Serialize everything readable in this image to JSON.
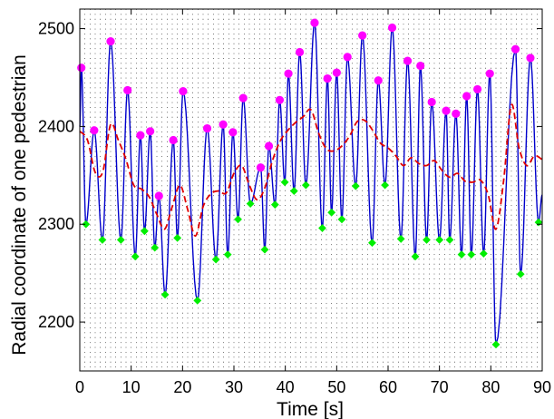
{
  "chart_data": {
    "type": "line",
    "xlabel": "Time [s]",
    "ylabel": "Radial coordinate of one pedestrian",
    "xlim": [
      0,
      90
    ],
    "ylim": [
      2150,
      2520
    ],
    "xticks": [
      0,
      10,
      20,
      30,
      40,
      50,
      60,
      70,
      80,
      90
    ],
    "yticks": [
      2200,
      2300,
      2400,
      2500
    ],
    "grid": "dotted",
    "colors": {
      "trajectory": "#0000cc",
      "smoothed": "#e00000",
      "maxima": "#ff00ff",
      "minima": "#00ee00"
    },
    "series": [
      {
        "role": "trajectory-maxima",
        "x": [
          0.3,
          2.8,
          6.0,
          9.3,
          11.8,
          13.7,
          15.4,
          18.2,
          20.1,
          24.8,
          27.9,
          29.8,
          31.8,
          35.2,
          36.8,
          38.9,
          40.6,
          42.8,
          45.7,
          48.2,
          50.0,
          52.1,
          55.0,
          58.1,
          60.8,
          63.8,
          66.3,
          68.5,
          71.3,
          73.2,
          75.3,
          77.4,
          79.8,
          84.8,
          87.7
        ],
        "y": [
          2460,
          2396,
          2487,
          2437,
          2391,
          2395,
          2329,
          2386,
          2436,
          2398,
          2402,
          2394,
          2429,
          2358,
          2380,
          2427,
          2454,
          2476,
          2506,
          2449,
          2455,
          2471,
          2493,
          2447,
          2501,
          2467,
          2462,
          2425,
          2416,
          2413,
          2431,
          2438,
          2454,
          2479,
          2470
        ]
      },
      {
        "role": "trajectory-minima",
        "x": [
          1.2,
          4.4,
          8.0,
          10.8,
          12.6,
          14.6,
          16.6,
          19.0,
          22.9,
          26.5,
          28.8,
          30.8,
          33.2,
          36.0,
          38.0,
          39.9,
          41.7,
          44.0,
          47.2,
          49.0,
          51.0,
          53.7,
          56.9,
          59.4,
          62.5,
          65.3,
          67.5,
          70.0,
          72.0,
          74.3,
          76.2,
          78.6,
          81.0,
          85.8,
          89.3
        ],
        "y": [
          2300,
          2284,
          2284,
          2267,
          2293,
          2276,
          2228,
          2286,
          2222,
          2264,
          2269,
          2305,
          2321,
          2274,
          2320,
          2343,
          2334,
          2340,
          2296,
          2312,
          2305,
          2339,
          2281,
          2340,
          2285,
          2267,
          2284,
          2284,
          2284,
          2269,
          2269,
          2270,
          2177,
          2249,
          2302
        ]
      },
      {
        "role": "smoothed-dashed",
        "x": [
          0.0,
          1.5,
          3.0,
          4.5,
          6.0,
          7.5,
          9.0,
          10.5,
          12.0,
          13.5,
          15.0,
          16.5,
          18.0,
          19.5,
          21.0,
          22.5,
          24.0,
          25.5,
          27.0,
          28.5,
          30.0,
          31.5,
          33.0,
          34.5,
          36.0,
          37.5,
          39.0,
          40.5,
          42.0,
          43.5,
          45.0,
          46.5,
          48.0,
          49.5,
          51.0,
          52.5,
          54.0,
          55.5,
          57.0,
          58.5,
          60.0,
          61.5,
          63.0,
          64.5,
          66.0,
          67.5,
          69.0,
          70.5,
          72.0,
          73.5,
          75.0,
          76.5,
          78.0,
          79.5,
          81.0,
          82.5,
          84.0,
          85.5,
          87.0,
          88.5,
          90.0
        ],
        "y": [
          2395,
          2386,
          2353,
          2354,
          2402,
          2386,
          2366,
          2340,
          2336,
          2328,
          2310,
          2295,
          2318,
          2340,
          2315,
          2288,
          2318,
          2331,
          2334,
          2332,
          2352,
          2360,
          2340,
          2325,
          2337,
          2365,
          2385,
          2396,
          2404,
          2410,
          2417,
          2393,
          2377,
          2375,
          2380,
          2390,
          2405,
          2406,
          2396,
          2383,
          2378,
          2370,
          2360,
          2368,
          2362,
          2360,
          2365,
          2355,
          2348,
          2352,
          2344,
          2343,
          2345,
          2330,
          2295,
          2345,
          2422,
          2378,
          2360,
          2370,
          2366
        ]
      }
    ]
  }
}
